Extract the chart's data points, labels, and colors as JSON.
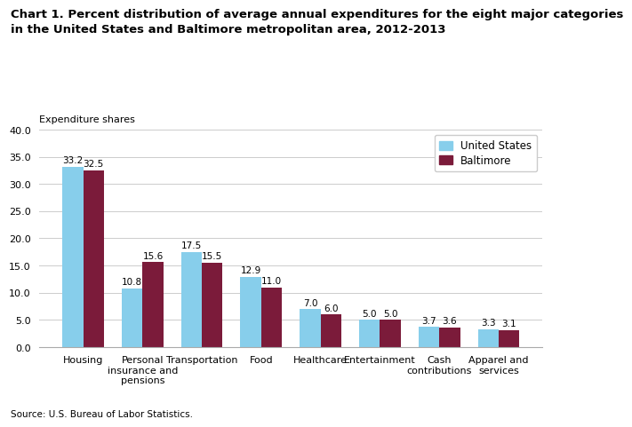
{
  "title_line1": "Chart 1. Percent distribution of average annual expenditures for the eight major categories",
  "title_line2": "in the United States and Baltimore metropolitan area, 2012-2013",
  "ylabel": "Expenditure shares",
  "ylim": [
    0,
    40
  ],
  "yticks": [
    0.0,
    5.0,
    10.0,
    15.0,
    20.0,
    25.0,
    30.0,
    35.0,
    40.0
  ],
  "categories": [
    "Housing",
    "Personal\ninsurance and\npensions",
    "Transportation",
    "Food",
    "Healthcare",
    "Entertainment",
    "Cash\ncontributions",
    "Apparel and\nservices"
  ],
  "us_values": [
    33.2,
    10.8,
    17.5,
    12.9,
    7.0,
    5.0,
    3.7,
    3.3
  ],
  "baltimore_values": [
    32.5,
    15.6,
    15.5,
    11.0,
    6.0,
    5.0,
    3.6,
    3.1
  ],
  "us_color": "#87CEEB",
  "baltimore_color": "#7B1B3A",
  "us_label": "United States",
  "baltimore_label": "Baltimore",
  "source": "Source: U.S. Bureau of Labor Statistics.",
  "bar_width": 0.35,
  "value_fontsize": 7.5,
  "tick_fontsize": 8,
  "title_fontsize": 9.5,
  "legend_fontsize": 8.5,
  "ylabel_fontsize": 8,
  "background_color": "#ffffff",
  "grid_color": "#cccccc"
}
